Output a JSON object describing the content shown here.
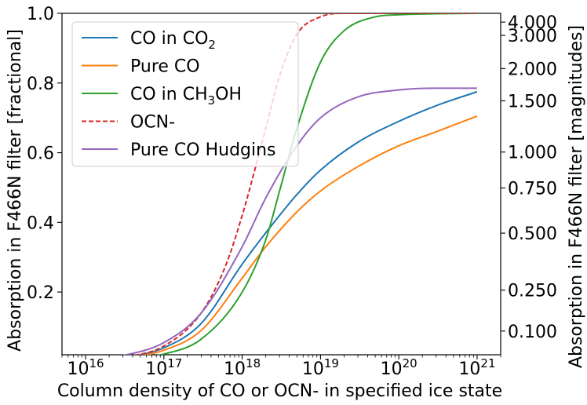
{
  "chart_data": {
    "type": "line",
    "title": "",
    "xlabel": "Column density of CO or OCN- in specified ice state",
    "ylabel": "Absorption in F466N filter [fractional]",
    "ylabel_right": "Absorption in F466N filter [magnitudes]",
    "xscale": "log",
    "xlim": [
      5000000000000000.0,
      2e+21
    ],
    "ylim": [
      0.02,
      1.0
    ],
    "x_ticks": [
      {
        "value": 1e+16,
        "base": "10",
        "exp": "16"
      },
      {
        "value": 1e+17,
        "base": "10",
        "exp": "17"
      },
      {
        "value": 1e+18,
        "base": "10",
        "exp": "18"
      },
      {
        "value": 1e+19,
        "base": "10",
        "exp": "19"
      },
      {
        "value": 1e+20,
        "base": "10",
        "exp": "20"
      },
      {
        "value": 1e+21,
        "base": "10",
        "exp": "21"
      }
    ],
    "y_ticks": [
      {
        "value": 0.2,
        "label": "0.2"
      },
      {
        "value": 0.4,
        "label": "0.4"
      },
      {
        "value": 0.6,
        "label": "0.6"
      },
      {
        "value": 0.8,
        "label": "0.8"
      },
      {
        "value": 1.0,
        "label": "1.0"
      }
    ],
    "y_right_ticks": [
      {
        "value": 0.1,
        "label": "0.100"
      },
      {
        "value": 0.25,
        "label": "0.250"
      },
      {
        "value": 0.5,
        "label": "0.500"
      },
      {
        "value": 0.75,
        "label": "0.750"
      },
      {
        "value": 1.0,
        "label": "1.000"
      },
      {
        "value": 1.5,
        "label": "1.500"
      },
      {
        "value": 2.0,
        "label": "2.000"
      },
      {
        "value": 3.0,
        "label": "3.000"
      },
      {
        "value": 4.0,
        "label": "4.000"
      }
    ],
    "grid": false,
    "legend_position": "top-left",
    "series": [
      {
        "name": "CO in CO",
        "name_sub": "2",
        "name_tail": "",
        "color": "#1f77b4",
        "dash": "solid",
        "x": [
          1e+16,
          3e+16,
          1e+17,
          3e+17,
          1e+18,
          2e+18,
          5e+18,
          1e+19,
          3e+19,
          1e+20,
          3e+20,
          1e+21
        ],
        "y": [
          0.004,
          0.012,
          0.04,
          0.11,
          0.28,
          0.37,
          0.48,
          0.55,
          0.63,
          0.69,
          0.735,
          0.775
        ]
      },
      {
        "name": "Pure CO",
        "name_sub": "",
        "name_tail": "",
        "color": "#ff7f0e",
        "dash": "solid",
        "x": [
          1e+16,
          3e+16,
          1e+17,
          3e+17,
          1e+18,
          2e+18,
          5e+18,
          1e+19,
          3e+19,
          1e+20,
          3e+20,
          1e+21
        ],
        "y": [
          0.003,
          0.01,
          0.033,
          0.09,
          0.24,
          0.33,
          0.43,
          0.49,
          0.56,
          0.62,
          0.66,
          0.705
        ]
      },
      {
        "name": "CO in CH",
        "name_sub": "3",
        "name_tail": "OH",
        "color": "#2ca02c",
        "dash": "solid",
        "x": [
          1e+16,
          3e+16,
          1e+17,
          3e+17,
          1e+18,
          2e+18,
          3e+18,
          5e+18,
          1e+19,
          2e+19,
          5e+19,
          1e+20,
          3e+20,
          1e+21
        ],
        "y": [
          0.002,
          0.007,
          0.022,
          0.065,
          0.2,
          0.35,
          0.49,
          0.67,
          0.86,
          0.95,
          0.99,
          0.996,
          0.999,
          1.0
        ]
      },
      {
        "name": "OCN-",
        "name_sub": "",
        "name_tail": "",
        "color": "#d62728",
        "dash": "dashed",
        "x": [
          1e+16,
          3e+16,
          1e+17,
          3e+17,
          6e+17,
          1e+18,
          2e+18,
          3e+18,
          5e+18,
          1e+19,
          2e+19,
          1e+20,
          1e+21
        ],
        "y": [
          0.003,
          0.013,
          0.045,
          0.14,
          0.27,
          0.42,
          0.67,
          0.82,
          0.94,
          0.99,
          1.0,
          1.0,
          1.0
        ]
      },
      {
        "name": "Pure CO Hudgins",
        "name_sub": "",
        "name_tail": "",
        "color": "#9467bd",
        "dash": "solid",
        "x": [
          1e+16,
          3e+16,
          1e+17,
          3e+17,
          1e+18,
          2e+18,
          5e+18,
          1e+19,
          3e+19,
          1e+20,
          3e+20,
          1e+21
        ],
        "y": [
          0.006,
          0.018,
          0.055,
          0.14,
          0.33,
          0.47,
          0.62,
          0.7,
          0.76,
          0.78,
          0.785,
          0.785
        ]
      }
    ]
  }
}
